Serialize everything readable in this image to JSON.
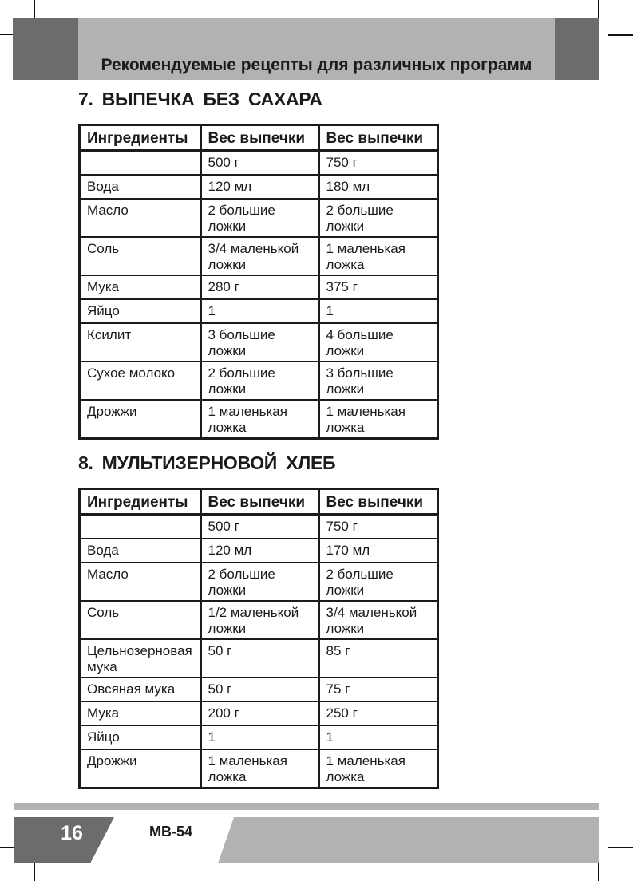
{
  "header": {
    "title": "Рекомендуемые рецепты для различных программ"
  },
  "sections": [
    {
      "heading": "7. ВЫПЕЧКА БЕЗ САХАРА",
      "table": {
        "columns": [
          "Ингредиенты",
          "Вес выпечки",
          "Вес выпечки"
        ],
        "rows": [
          [
            "",
            "500 г",
            "750 г"
          ],
          [
            "Вода",
            "120 мл",
            "180 мл"
          ],
          [
            "Масло",
            "2 большие\nложки",
            "2 большие\nложки"
          ],
          [
            "Соль",
            "3/4 маленькой\nложки",
            "1 маленькая\nложка"
          ],
          [
            "Мука",
            "280 г",
            "375 г"
          ],
          [
            "Яйцо",
            "1",
            "1"
          ],
          [
            "Ксилит",
            "3 большие\nложки",
            "4 большие\nложки"
          ],
          [
            "Сухое молоко",
            "2 большие\nложки",
            "3 большие\nложки"
          ],
          [
            "Дрожжи",
            "1 маленькая\nложка",
            "1 маленькая\nложка"
          ]
        ]
      }
    },
    {
      "heading": "8. МУЛЬТИЗЕРНОВОЙ ХЛЕБ",
      "table": {
        "columns": [
          "Ингредиенты",
          "Вес выпечки",
          "Вес выпечки"
        ],
        "rows": [
          [
            "",
            "500 г",
            "750 г"
          ],
          [
            "Вода",
            "120 мл",
            "170 мл"
          ],
          [
            "Масло",
            "2 большие\nложки",
            "2 большие\nложки"
          ],
          [
            "Соль",
            "1/2 маленькой\nложки",
            "3/4 маленькой\nложки"
          ],
          [
            "Цельнозерновая\nмука",
            "50 г",
            "85 г"
          ],
          [
            "Овсяная мука",
            "50 г",
            "75 г"
          ],
          [
            "Мука",
            "200 г",
            "250 г"
          ],
          [
            "Яйцо",
            "1",
            "1"
          ],
          [
            "Дрожжи",
            "1 маленькая\nложка",
            "1 маленькая\nложка"
          ]
        ]
      }
    }
  ],
  "footer": {
    "page_number": "16",
    "model": "МВ-54"
  },
  "colors": {
    "band_light_gray": "#b2b2b2",
    "band_dark_gray": "#6c6c6c",
    "text_and_borders": "#1b1b1b"
  }
}
